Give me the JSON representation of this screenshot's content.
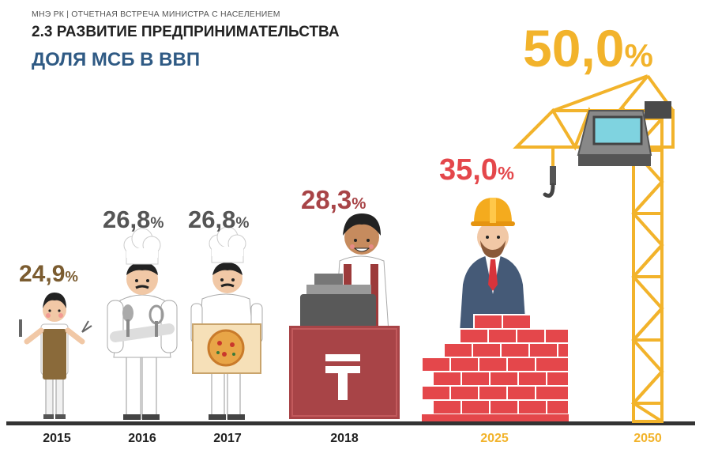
{
  "header": {
    "subtitle": "МНЭ РК | ОТЧЕТНАЯ ВСТРЕЧА МИНИСТРА С НАСЕЛЕНИЕМ",
    "section": "2.3 РАЗВИТИЕ ПРЕДПРИНИМАТЕЛЬСТВА",
    "title": "ДОЛЯ МСБ В ВВП"
  },
  "colors": {
    "title": "#2f5a84",
    "y2015": "#7b5c30",
    "y2016_2017": "#555555",
    "y2018": "#a84447",
    "y2025": "#e4474b",
    "y2050": "#f2b32b",
    "axis": "#333333"
  },
  "chart_data": {
    "type": "bar",
    "title": "ДОЛЯ МСБ В ВВП",
    "categories": [
      "2015",
      "2016",
      "2017",
      "2018",
      "2025",
      "2050"
    ],
    "values": [
      24.9,
      26.8,
      26.8,
      28.3,
      35.0,
      50.0
    ],
    "value_labels": [
      {
        "num": "24,9",
        "unit": "%"
      },
      {
        "num": "26,8",
        "unit": "%"
      },
      {
        "num": "26,8",
        "unit": "%"
      },
      {
        "num": "28,3",
        "unit": "%"
      },
      {
        "num": "35,0",
        "unit": "%"
      },
      {
        "num": "50,0",
        "unit": "%"
      }
    ],
    "illustrations": [
      "barber-icon",
      "chef-icon",
      "pizza-chef-icon",
      "cashier-icon",
      "businessman-brick-wall-icon",
      "construction-crane-icon"
    ]
  }
}
